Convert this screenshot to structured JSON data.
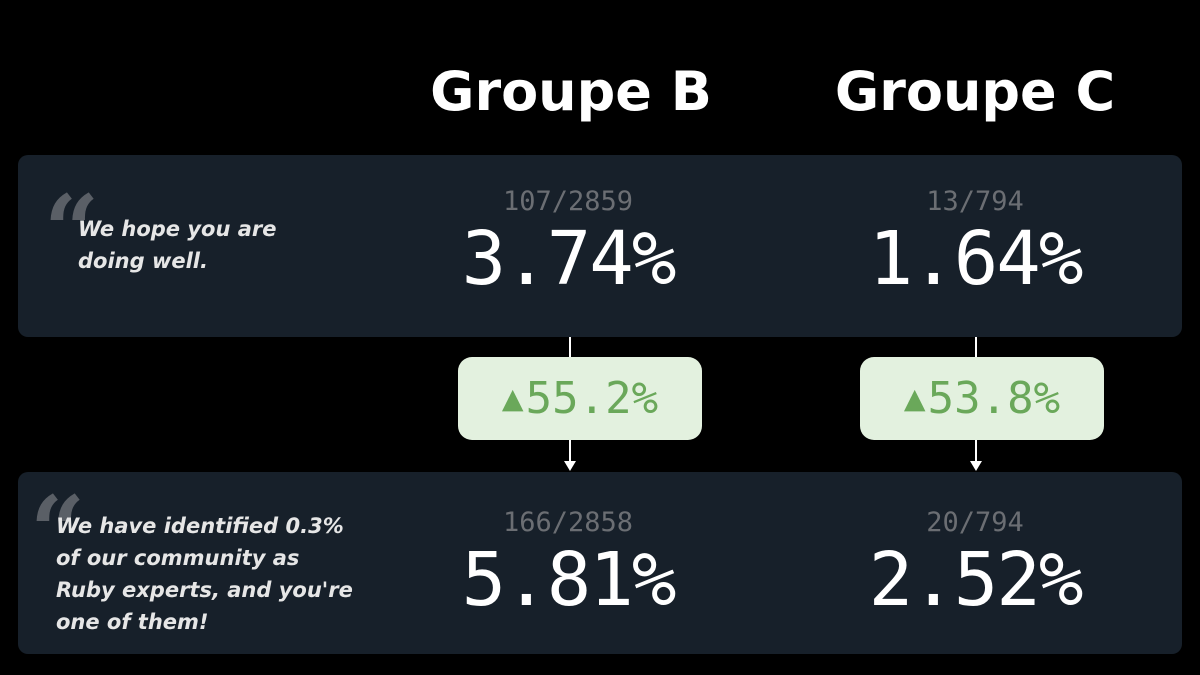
{
  "groups": [
    {
      "title": "Groupe B"
    },
    {
      "title": "Groupe C"
    }
  ],
  "rows": [
    {
      "quote": "We hope you are doing well.",
      "cells": [
        {
          "ratio": "107/2859",
          "percent": "3.74%"
        },
        {
          "ratio": "13/794",
          "percent": "1.64%"
        }
      ]
    },
    {
      "quote": "We have identified 0.3% of our community as Ruby experts, and you're one of them!",
      "cells": [
        {
          "ratio": "166/2858",
          "percent": "5.81%"
        },
        {
          "ratio": "20/794",
          "percent": "2.52%"
        }
      ]
    }
  ],
  "changes": [
    {
      "direction": "up",
      "glyph": "▲",
      "value": "55.2%"
    },
    {
      "direction": "up",
      "glyph": "▲",
      "value": "53.8%"
    }
  ],
  "colors": {
    "background": "#000000",
    "panel": "#17202a",
    "badge_bg": "#e3f1df",
    "badge_text": "#6aa85a",
    "ratio_text": "#6b6e73"
  },
  "icons": {
    "quote": "quote-icon",
    "increase": "triangle-up-icon"
  }
}
